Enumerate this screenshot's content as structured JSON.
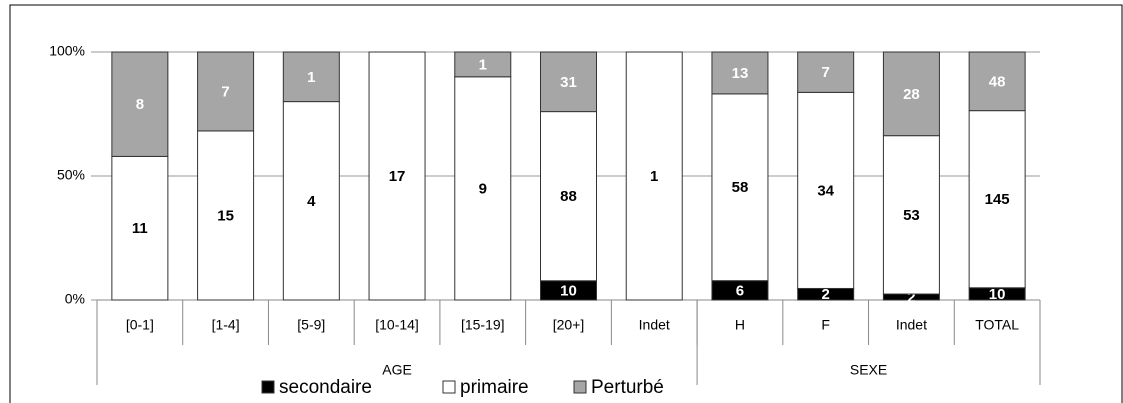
{
  "chart_data": {
    "type": "stacked_percent_bar",
    "categories": [
      "[0-1]",
      "[1-4]",
      "[5-9]",
      "[10-14]",
      "[15-19]",
      "[20+]",
      "Indet",
      "H",
      "F",
      "Indet",
      "TOTAL"
    ],
    "groups": [
      {
        "name": "AGE",
        "size": 7
      },
      {
        "name": "SEXE",
        "size": 4
      }
    ],
    "series": [
      {
        "name": "secondaire",
        "color": "#000000",
        "label_color": "#ffffff",
        "values": [
          null,
          null,
          null,
          null,
          null,
          10,
          null,
          6,
          2,
          2,
          10
        ]
      },
      {
        "name": "primaire",
        "color": "#ffffff",
        "label_color": "#000000",
        "values": [
          11,
          15,
          4,
          17,
          9,
          88,
          1,
          58,
          34,
          53,
          145
        ]
      },
      {
        "name": "Perturbé",
        "color": "#a6a6a6",
        "label_color": "#ffffff",
        "values": [
          8,
          7,
          1,
          null,
          1,
          31,
          null,
          13,
          7,
          28,
          48
        ]
      }
    ],
    "ylim": [
      0,
      100
    ],
    "yticks": [
      {
        "value": 0,
        "label": "0%"
      },
      {
        "value": 50,
        "label": "50%"
      },
      {
        "value": 100,
        "label": "100%"
      }
    ],
    "grid": true,
    "legend": "bottom"
  }
}
